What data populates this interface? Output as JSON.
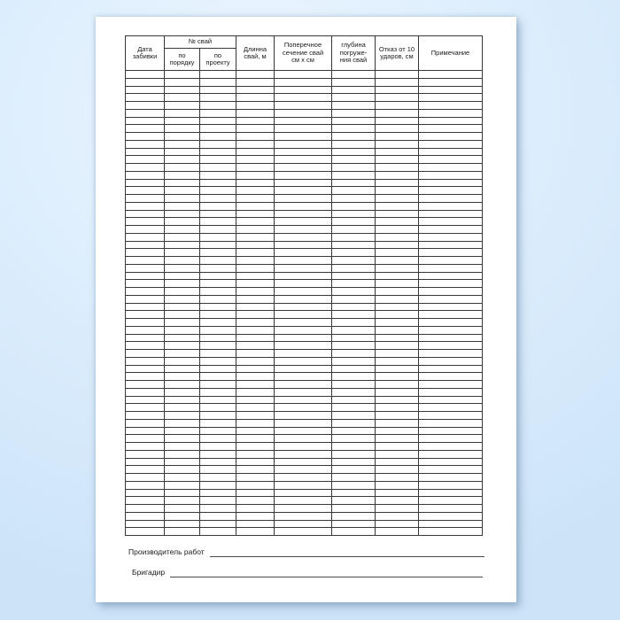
{
  "theme": {
    "background_center": "#eef6fe",
    "background_edge": "#cde4f8",
    "paper": "#ffffff",
    "grid_line": "#383838",
    "text": "#1a1a1a"
  },
  "table": {
    "group_header": "№ свай",
    "headers": {
      "date": "Дата\nзабивки",
      "order": "по\nпорядку",
      "project": "по\nпроекту",
      "length": "Длинна\nсвай, м",
      "cross_section": "Поперечное\nсечение свай\nсм х см",
      "depth": "глубина\nпогруже-\nния свай",
      "refusal": "Отказ от 10\nударов, см",
      "note": "Примечание"
    },
    "body_row_count": 60,
    "column_count": 8
  },
  "footer": {
    "producer_label": "Производитель работ",
    "brigadier_label": "Бригадир"
  }
}
